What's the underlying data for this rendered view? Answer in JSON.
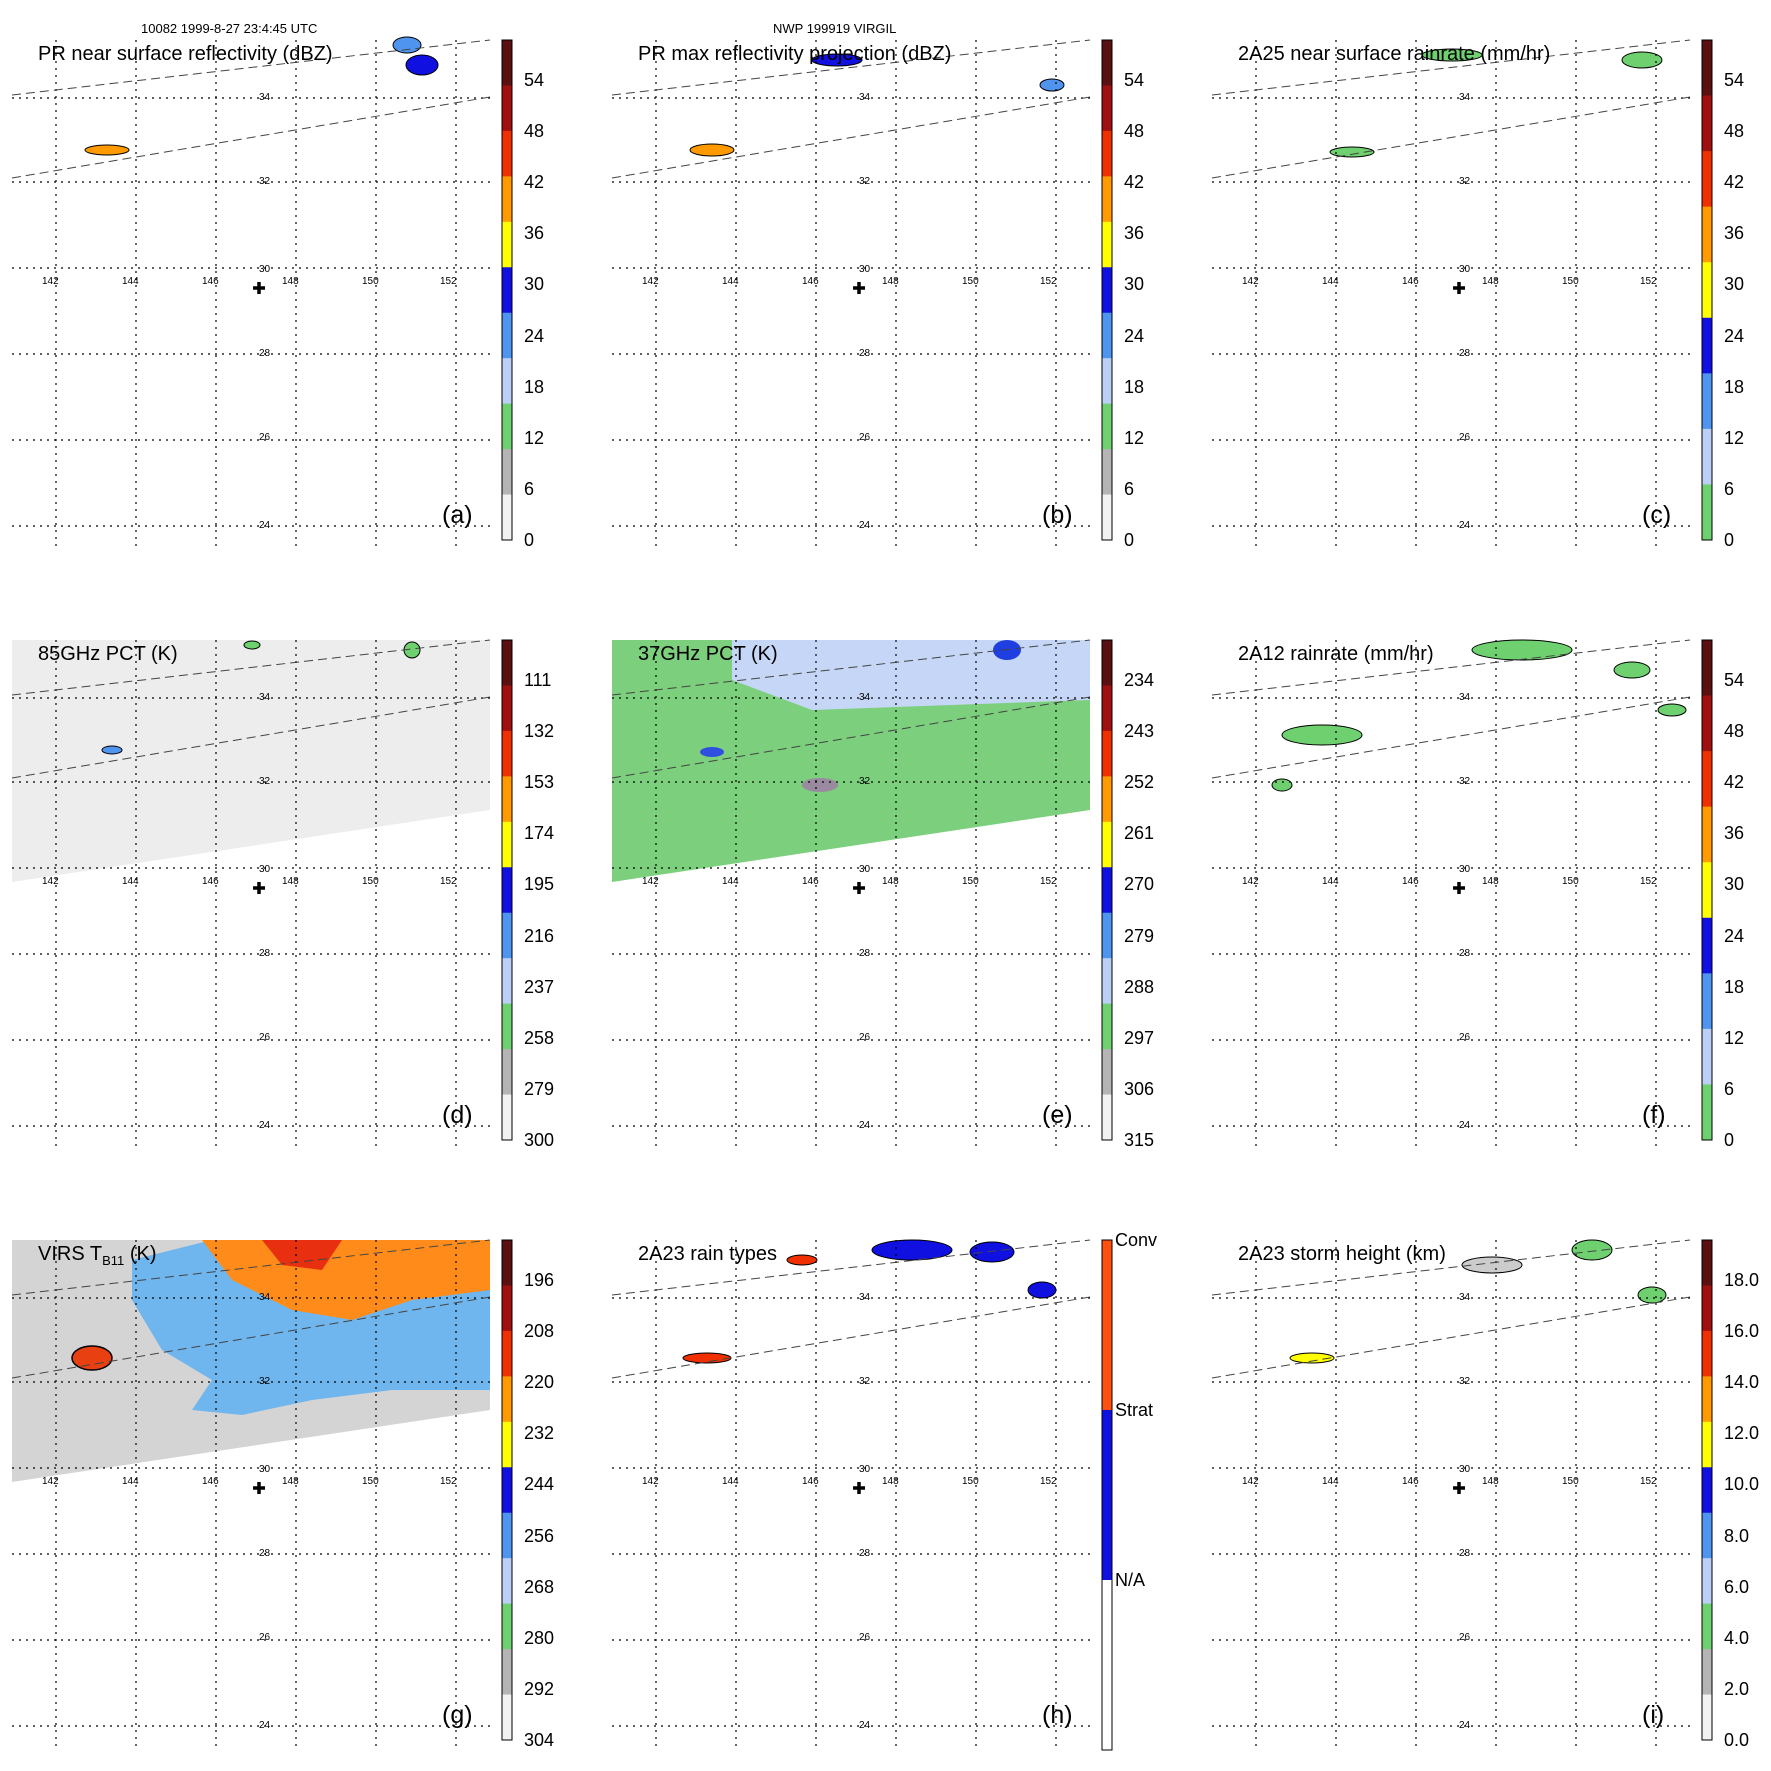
{
  "header": {
    "left": "10082 1999-8-27 23:4:45 UTC",
    "center": "NWP 199919 VIRGIL"
  },
  "lon_ticks": [
    "142",
    "144",
    "146",
    "148",
    "150",
    "152"
  ],
  "lat_ticks": [
    "34",
    "32",
    "30",
    "28",
    "26",
    "24"
  ],
  "colors": {
    "gray_light": "#f2f2f2",
    "gray_mid": "#b4b4b4",
    "green": "#6ed06e",
    "lightblue": "#bcd0f6",
    "blue": "#4f95f0",
    "darkblue": "#1010e0",
    "yellow": "#ffff00",
    "orange": "#ff9a00",
    "red": "#f03000",
    "darkred": "#a01010",
    "brown": "#5a1010"
  },
  "panels": [
    {
      "id": "a",
      "title": "PR near surface reflectivity (dBZ)",
      "label": "(a)",
      "colorbar_ticks": [
        "54",
        "48",
        "42",
        "36",
        "30",
        "24",
        "18",
        "12",
        "6",
        "0"
      ],
      "colorbar": "reflectivity"
    },
    {
      "id": "b",
      "title": "PR max reflectivity projection (dBZ)",
      "label": "(b)",
      "colorbar_ticks": [
        "54",
        "48",
        "42",
        "36",
        "30",
        "24",
        "18",
        "12",
        "6",
        "0"
      ],
      "colorbar": "reflectivity"
    },
    {
      "id": "c",
      "title": "2A25 near surface rainrate (mm/hr)",
      "label": "(c)",
      "colorbar_ticks": [
        "54",
        "48",
        "42",
        "36",
        "30",
        "24",
        "18",
        "12",
        "6",
        "0"
      ],
      "colorbar": "rainrate"
    },
    {
      "id": "d",
      "title": "85GHz PCT (K)",
      "label": "(d)",
      "colorbar_ticks": [
        "111",
        "132",
        "153",
        "174",
        "195",
        "216",
        "237",
        "258",
        "279",
        "300"
      ],
      "colorbar": "reflectivity"
    },
    {
      "id": "e",
      "title": "37GHz PCT (K)",
      "label": "(e)",
      "colorbar_ticks": [
        "234",
        "243",
        "252",
        "261",
        "270",
        "279",
        "288",
        "297",
        "306",
        "315"
      ],
      "colorbar": "reflectivity"
    },
    {
      "id": "f",
      "title": "2A12 rainrate (mm/hr)",
      "label": "(f)",
      "colorbar_ticks": [
        "54",
        "48",
        "42",
        "36",
        "30",
        "24",
        "18",
        "12",
        "6",
        "0"
      ],
      "colorbar": "rainrate"
    },
    {
      "id": "g",
      "title_main": "VIRS T",
      "title_sub": "B11",
      "title_unit": " (K)",
      "label": "(g)",
      "colorbar_ticks": [
        "196",
        "208",
        "220",
        "232",
        "244",
        "256",
        "268",
        "280",
        "292",
        "304"
      ],
      "colorbar": "reflectivity"
    },
    {
      "id": "h",
      "title": "2A23 rain types",
      "label": "(h)",
      "colorbar_ticks": [
        "Conv",
        "Strat",
        "N/A"
      ],
      "colorbar": "raintype"
    },
    {
      "id": "i",
      "title": "2A23 storm height (km)",
      "label": "(i)",
      "colorbar_ticks": [
        "18.0",
        "16.0",
        "14.0",
        "12.0",
        "10.0",
        "8.0",
        "6.0",
        "4.0",
        "2.0",
        "0.0"
      ],
      "colorbar": "reflectivity"
    }
  ]
}
